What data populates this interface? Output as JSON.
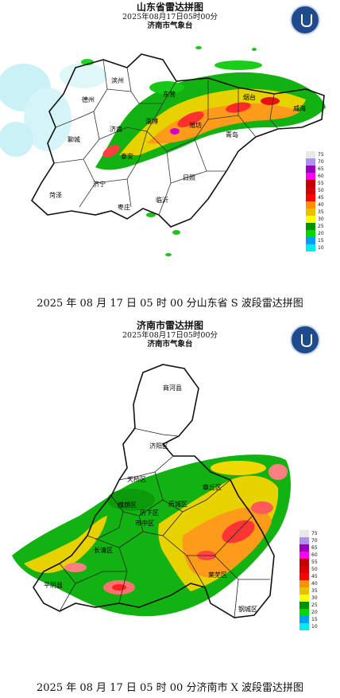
{
  "province_map": {
    "title": "山东省雷达拼图",
    "datetime": "2025年08月17日05时00分",
    "org": "济南市气象台",
    "logo": "meteorological-emblem",
    "cities": [
      "滨州",
      "德州",
      "东营",
      "烟台",
      "威海",
      "聊城",
      "济南",
      "淄博",
      "潍坊",
      "青岛",
      "泰安",
      "济宁",
      "日照",
      "菏泽",
      "临沂",
      "枣庄"
    ]
  },
  "province_caption": "2025 年 08 月 17 日 05 时 00 分山东省 S 波段雷达拼图",
  "city_map": {
    "title": "济南市雷达拼图",
    "datetime": "2025年08月17日05时00分",
    "org": "济南市气象台",
    "logo": "meteorological-emblem",
    "districts": [
      "商河县",
      "济阳区",
      "天桥区",
      "章丘区",
      "槐荫区",
      "历城区",
      "历下区",
      "市中区",
      "长清区",
      "莱芜区",
      "平阴县",
      "钢城区"
    ]
  },
  "city_caption": "2025 年 08 月 17 日 05 时 00 分济南市 X 波段雷达拼图",
  "legend": {
    "labels": [
      "75",
      "70",
      "65",
      "60",
      "55",
      "50",
      "45",
      "40",
      "35",
      "30",
      "25",
      "20",
      "15",
      "10"
    ],
    "colors": [
      "#e8e8e8",
      "#ad90f0",
      "#9600b4",
      "#ff00f0",
      "#c00000",
      "#d60000",
      "#ff0000",
      "#ff9000",
      "#e7c000",
      "#ffff00",
      "#009000",
      "#00d800",
      "#01a0f6",
      "#00ecec"
    ]
  }
}
